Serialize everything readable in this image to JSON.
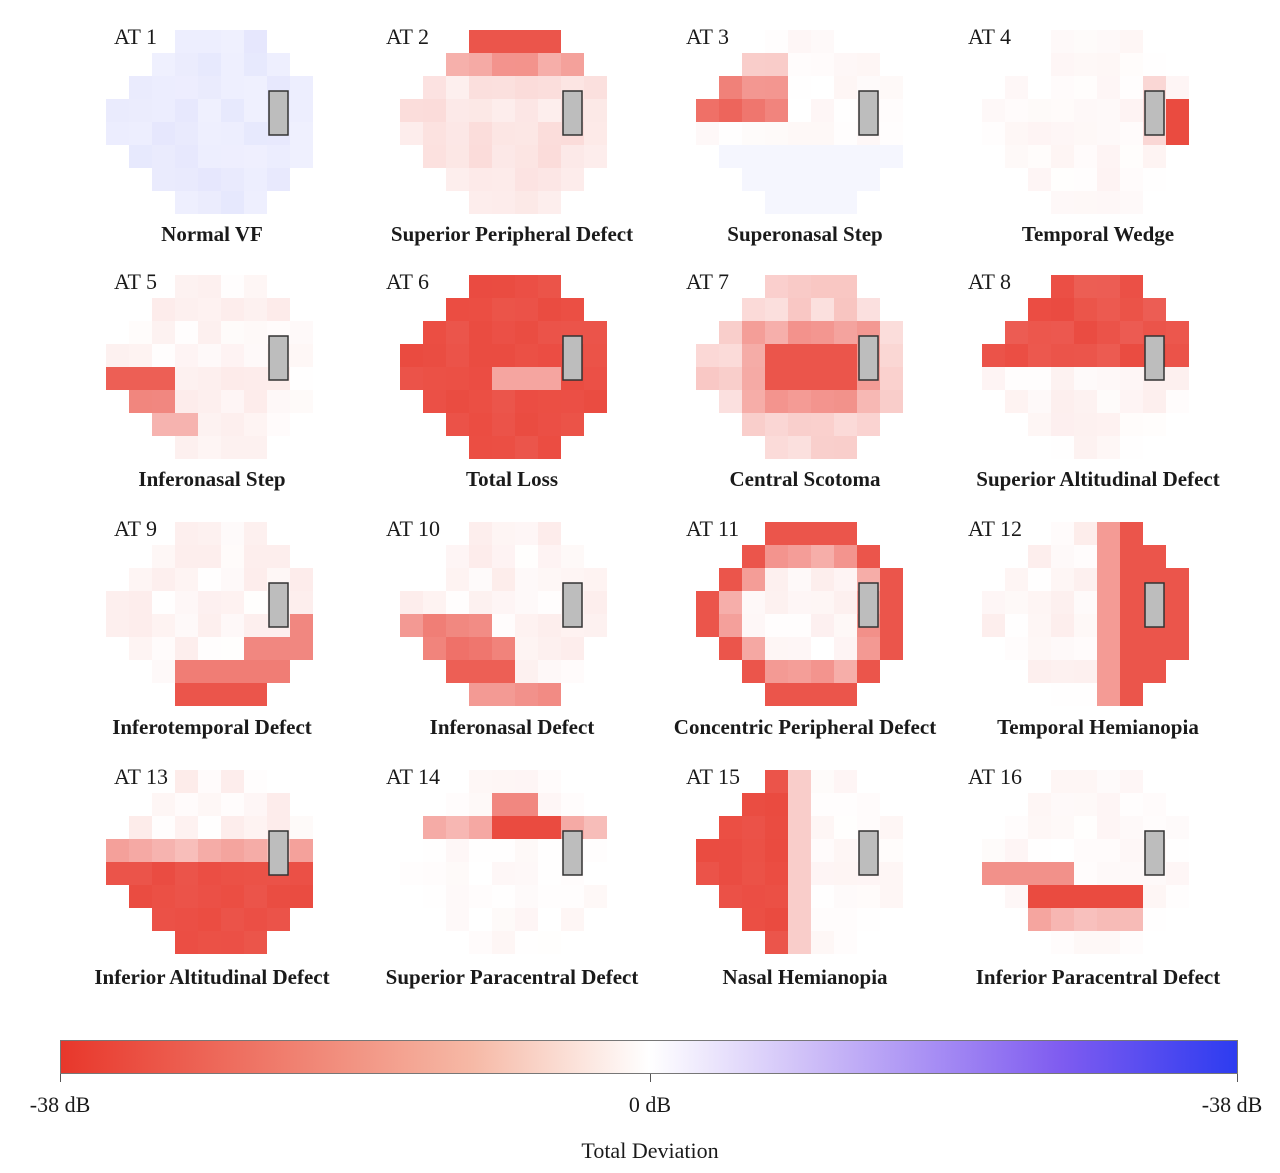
{
  "chart_data": {
    "type": "heatmap",
    "grid": "24-2 visual field (54 points, 8x9 layout) with blind spot",
    "panels": [
      {
        "id": "AT 1",
        "title": "Normal VF",
        "pattern": "normal"
      },
      {
        "id": "AT 2",
        "title": "Superior Peripheral Defect",
        "pattern": "superior_peripheral"
      },
      {
        "id": "AT 3",
        "title": "Superonasal Step",
        "pattern": "superonasal_step"
      },
      {
        "id": "AT 4",
        "title": "Temporal Wedge",
        "pattern": "temporal_wedge"
      },
      {
        "id": "AT 5",
        "title": "Inferonasal Step",
        "pattern": "inferonasal_step"
      },
      {
        "id": "AT 6",
        "title": "Total Loss",
        "pattern": "total_loss"
      },
      {
        "id": "AT 7",
        "title": "Central Scotoma",
        "pattern": "central_scotoma"
      },
      {
        "id": "AT 8",
        "title": "Superior Altitudinal Defect",
        "pattern": "superior_altitudinal"
      },
      {
        "id": "AT 9",
        "title": "Inferotemporal Defect",
        "pattern": "inferotemporal"
      },
      {
        "id": "AT 10",
        "title": "Inferonasal Defect",
        "pattern": "inferonasal"
      },
      {
        "id": "AT 11",
        "title": "Concentric Peripheral Defect",
        "pattern": "concentric"
      },
      {
        "id": "AT 12",
        "title": "Temporal Hemianopia",
        "pattern": "temporal_hemianopia"
      },
      {
        "id": "AT 13",
        "title": "Inferior Altitudinal Defect",
        "pattern": "inferior_altitudinal"
      },
      {
        "id": "AT 14",
        "title": "Superior Paracentral Defect",
        "pattern": "superior_paracentral"
      },
      {
        "id": "AT 15",
        "title": "Nasal Hemianopia",
        "pattern": "nasal_hemianopia"
      },
      {
        "id": "AT 16",
        "title": "Inferior Paracentral Defect",
        "pattern": "inferior_paracentral"
      }
    ],
    "colorbar": {
      "title": "Total Deviation",
      "ticks": [
        "-38 dB",
        "0 dB",
        "-38 dB"
      ],
      "colors": [
        "#e8372b",
        "#ffffff",
        "#2d3cf0"
      ]
    }
  }
}
